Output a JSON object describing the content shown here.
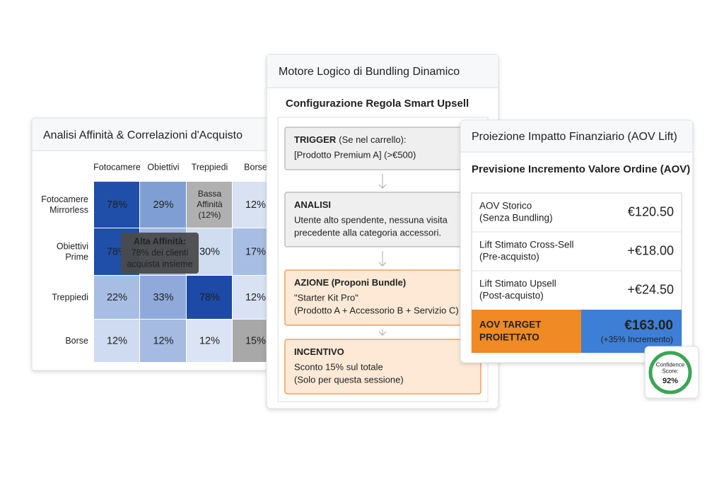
{
  "affinity_card": {
    "title": "Analisi Affinità & Correlazioni d'Acquisto",
    "columns": [
      "Fotocamere",
      "Obiettivi",
      "Treppiedi",
      "Borse"
    ],
    "rows": [
      {
        "label": [
          "Fotocamere",
          "Mirrorless"
        ],
        "cells": [
          [
            "78%"
          ],
          [
            "29%"
          ],
          [
            "Bassa",
            "Affinità",
            "(12%)"
          ],
          [
            "12%"
          ]
        ]
      },
      {
        "label": [
          "Obiettivi",
          "Prime"
        ],
        "cells": [
          [
            "78%"
          ],
          null,
          [
            "30%"
          ],
          [
            "17%"
          ]
        ]
      },
      {
        "label": [
          "Treppiedi"
        ],
        "cells": [
          [
            "22%"
          ],
          [
            "33%"
          ],
          [
            "78%"
          ],
          [
            "12%"
          ]
        ]
      },
      {
        "label": [
          "Borse"
        ],
        "cells": [
          [
            "12%"
          ],
          [
            "12%"
          ],
          [
            "12%"
          ],
          [
            "15%"
          ]
        ]
      }
    ],
    "tooltip": [
      "Alta Affinità:",
      "78% dei clienti",
      "acquista insieme"
    ]
  },
  "rule_card": {
    "title": "Motore Logico di Bundling Dinamico",
    "subtitle": "Configurazione Regola Smart Upsell",
    "steps": [
      {
        "heading": "TRIGGER",
        "note": "(Se nel carrello):",
        "lines": [
          "[Prodotto Premium A] (>€500)"
        ]
      },
      {
        "heading": "ANALISI",
        "lines": [
          "Utente alto spendente, nessuna visita",
          "precedente alla categoria accessori."
        ]
      },
      {
        "heading": "AZIONE (Proponi Bundle)",
        "lines": [
          "\"Starter Kit Pro\"",
          "(Prodotto A + Accessorio B + Servizio C)"
        ]
      },
      {
        "heading": "INCENTIVO",
        "lines": [
          "Sconto 15% sul totale",
          "(Solo per questa sessione)"
        ]
      }
    ]
  },
  "impact_card": {
    "title": "Proiezione Impatto Finanziario (AOV Lift)",
    "subtitle": "Previsione Incremento Valore Ordine (AOV)",
    "rows": [
      {
        "label": [
          "AOV Storico",
          "(Senza Bundling)"
        ],
        "value": "€120.50"
      },
      {
        "label": [
          "Lift Stimato Cross-Sell",
          "(Pre-acquisto)"
        ],
        "value": "+€18.00"
      },
      {
        "label": [
          "Lift Stimato Upsell",
          "(Post-acquisto)"
        ],
        "value": "+€24.50"
      }
    ],
    "target": {
      "label": [
        "AOV TARGET",
        "PROIETTATO"
      ],
      "value": "€163.00",
      "note": "(+35% Incremento)"
    },
    "confidence": {
      "label": [
        "Confidence",
        "Score:"
      ],
      "value": "92%"
    }
  }
}
